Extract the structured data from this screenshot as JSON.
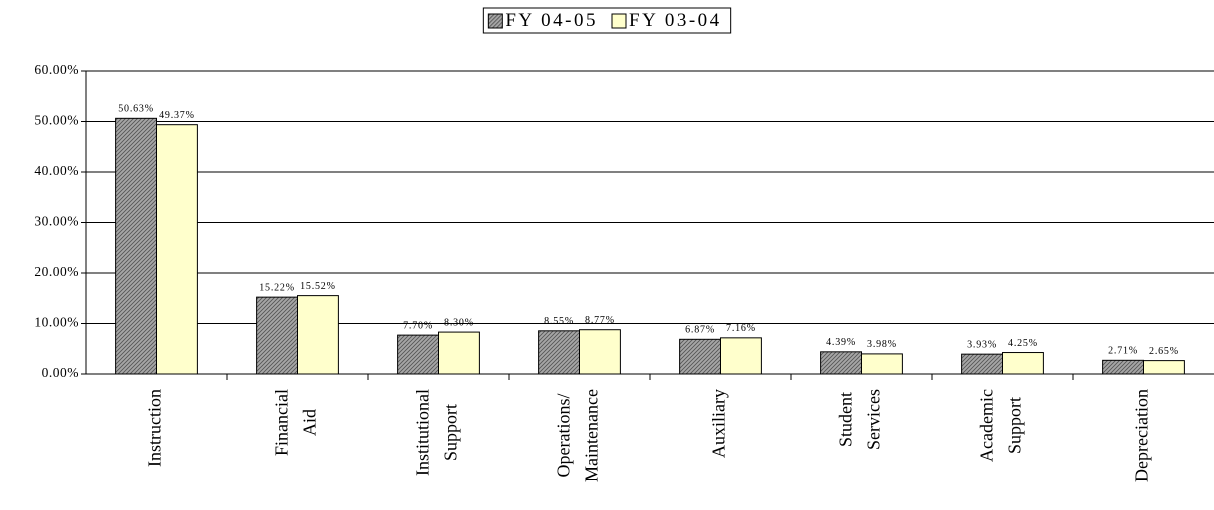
{
  "chart_data": {
    "type": "bar",
    "categories": [
      "Instruction",
      "Financial\nAid",
      "Institutional\nSupport",
      "Operations/\nMaintenance",
      "Auxiliary",
      "Student\nServices",
      "Academic\nSupport",
      "Depreciation"
    ],
    "series": [
      {
        "name": "FY 04-05",
        "color": "#a6a6a6",
        "pattern": "hatch",
        "values": [
          50.63,
          15.22,
          7.7,
          8.55,
          6.87,
          4.39,
          3.93,
          2.71
        ],
        "value_labels": [
          "50.63%",
          "15.22%",
          "7.70%",
          "8.55%",
          "6.87%",
          "4.39%",
          "3.93%",
          "2.71%"
        ]
      },
      {
        "name": "FY 03-04",
        "color": "#ffffcc",
        "values": [
          49.37,
          15.52,
          8.3,
          8.77,
          7.16,
          3.98,
          4.25,
          2.65
        ],
        "value_labels": [
          "49.37%",
          "15.52%",
          "8.30%",
          "8.77%",
          "7.16%",
          "3.98%",
          "4.25%",
          "2.65%"
        ]
      }
    ],
    "ylim": [
      0,
      60
    ],
    "yticks": [
      {
        "value": 0,
        "label": "0.00%"
      },
      {
        "value": 10,
        "label": "10.00%"
      },
      {
        "value": 20,
        "label": "20.00%"
      },
      {
        "value": 30,
        "label": "30.00%"
      },
      {
        "value": 40,
        "label": "40.00%"
      },
      {
        "value": 50,
        "label": "50.00%"
      },
      {
        "value": 60,
        "label": "60.00%"
      }
    ],
    "grid": true,
    "legend": "top"
  }
}
